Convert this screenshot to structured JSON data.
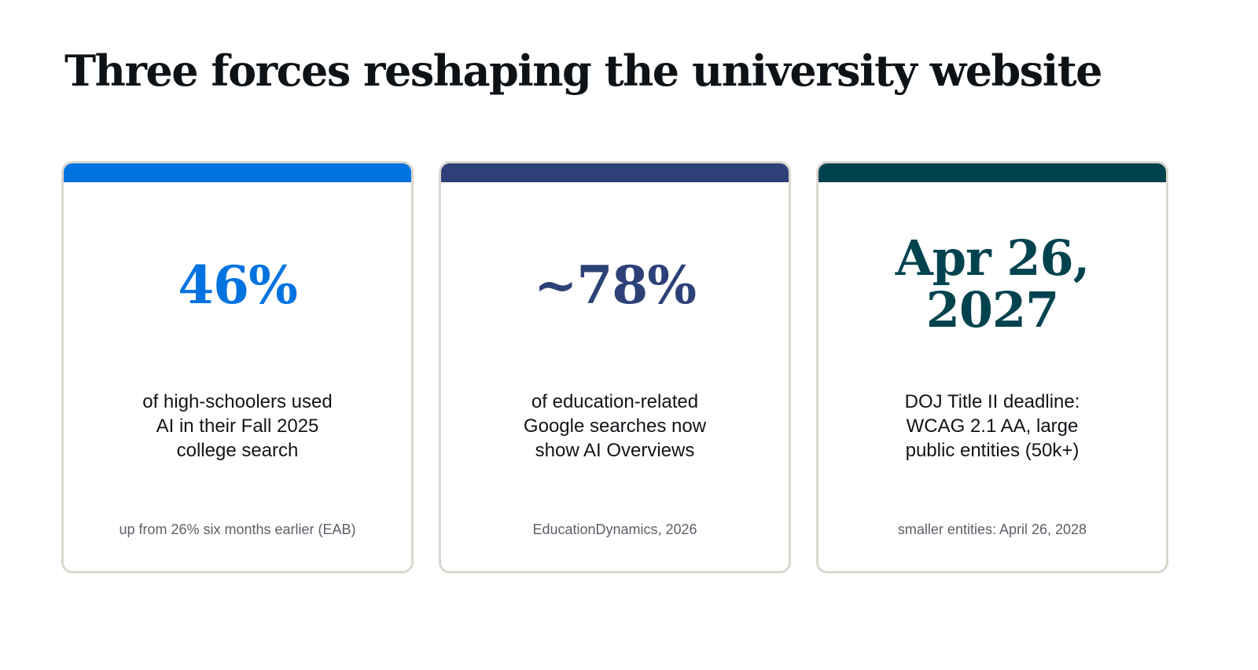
{
  "title": "Three forces reshaping the university website",
  "cards": [
    {
      "stat": "46%",
      "stat_lines": [
        "46%"
      ],
      "description_lines": [
        "of high-schoolers used",
        "AI in their Fall 2025",
        "college search"
      ],
      "note": "up from 26% six months earlier (EAB)",
      "accent_color": "#0073e0"
    },
    {
      "stat": "~78%",
      "stat_lines": [
        "~78%"
      ],
      "description_lines": [
        "of education-related",
        "Google searches now",
        "show AI Overviews"
      ],
      "note": "EducationDynamics, 2026",
      "accent_color": "#2d4178"
    },
    {
      "stat": "Apr 26, 2027",
      "stat_lines": [
        "Apr 26,",
        "2027"
      ],
      "description_lines": [
        "DOJ Title II deadline:",
        "WCAG 2.1 AA, large",
        "public entities (50k+)"
      ],
      "note": "smaller entities: April 26, 2028",
      "accent_color": "#00434f"
    }
  ],
  "colors": {
    "background": "#ffffff",
    "title": "#0d1217",
    "card_border": "#dcd6cf",
    "body_text": "#111418",
    "note_text": "#5b6168"
  }
}
